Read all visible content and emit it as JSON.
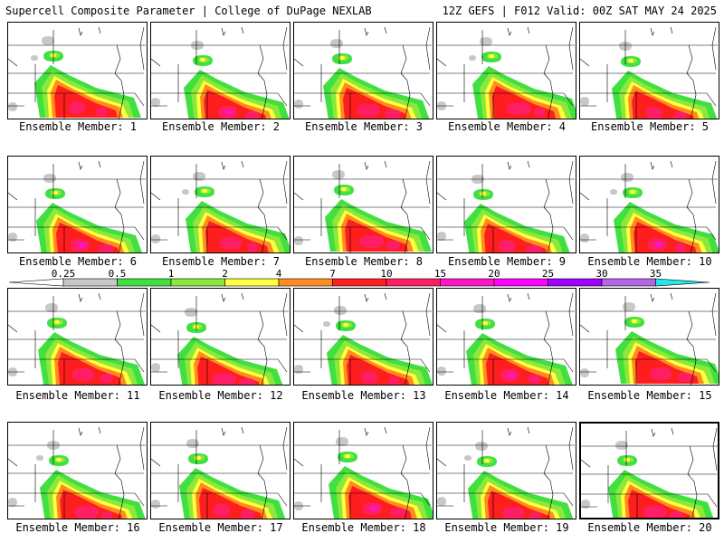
{
  "header": {
    "left": "Supercell Composite Parameter | College of DuPage NEXLAB",
    "right": "12Z GEFS | F012 Valid: 00Z SAT MAY 24 2025"
  },
  "panels": [
    {
      "caption": "Ensemble Member: 1"
    },
    {
      "caption": "Ensemble Member: 2"
    },
    {
      "caption": "Ensemble Member: 3"
    },
    {
      "caption": "Ensemble Member: 4"
    },
    {
      "caption": "Ensemble Member: 5"
    },
    {
      "caption": "Ensemble Member: 6"
    },
    {
      "caption": "Ensemble Member: 7"
    },
    {
      "caption": "Ensemble Member: 8"
    },
    {
      "caption": "Ensemble Member: 9"
    },
    {
      "caption": "Ensemble Member: 10"
    },
    {
      "caption": "Ensemble Member: 11"
    },
    {
      "caption": "Ensemble Member: 12"
    },
    {
      "caption": "Ensemble Member: 13"
    },
    {
      "caption": "Ensemble Member: 14"
    },
    {
      "caption": "Ensemble Member: 15"
    },
    {
      "caption": "Ensemble Member: 16"
    },
    {
      "caption": "Ensemble Member: 17"
    },
    {
      "caption": "Ensemble Member: 18"
    },
    {
      "caption": "Ensemble Member: 19"
    },
    {
      "caption": "Ensemble Member: 20"
    }
  ],
  "colorbar": {
    "labels": [
      "0.25",
      "0.5",
      "1",
      "2",
      "4",
      "7",
      "10",
      "15",
      "20",
      "25",
      "30",
      "35"
    ],
    "colors": [
      "#c8c8c8",
      "#40e040",
      "#8ce83c",
      "#ffff40",
      "#ff8c1e",
      "#ff1e1e",
      "#ff1e64",
      "#ff14c8",
      "#ff00ff",
      "#a000ff",
      "#b464e6",
      "#28e6e6"
    ]
  },
  "field_colors": {
    "gray": "#c8c8c8",
    "green": "#40e040",
    "light_green": "#8ce83c",
    "yellow": "#ffff40",
    "orange": "#ff8c1e",
    "red": "#ff1e1e",
    "crimson": "#ff1e64",
    "magenta": "#ff14c8"
  }
}
